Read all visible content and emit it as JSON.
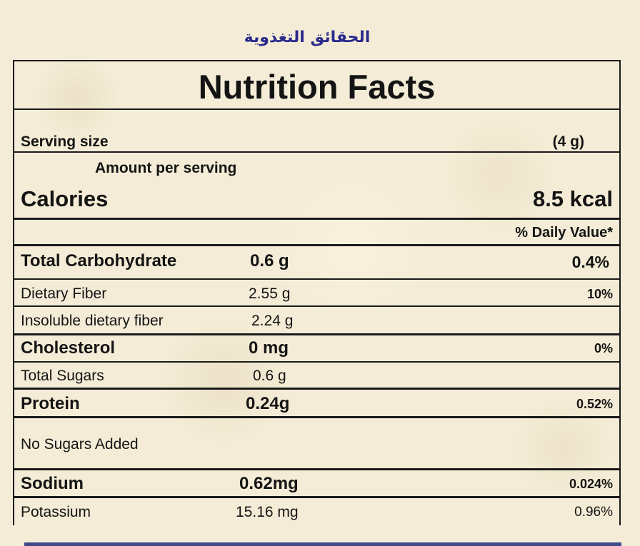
{
  "arabic_title": "الحقائق التغذوية",
  "label": {
    "title": "Nutrition Facts",
    "serving_size_label": "Serving size",
    "serving_size_value": "(4 g)",
    "amount_per_serving": "Amount per serving",
    "calories_label": "Calories",
    "calories_value": "8.5 kcal",
    "daily_value_header": "% Daily Value*",
    "rows": [
      {
        "name": "Total Carbohydrate",
        "amount": "0.6 g",
        "dv": "0.4%"
      },
      {
        "name": "Dietary Fiber",
        "amount": "2.55 g",
        "dv": "10%"
      },
      {
        "name": "Insoluble dietary fiber",
        "amount": "2.24 g",
        "dv": ""
      },
      {
        "name": "Cholesterol",
        "amount": "0 mg",
        "dv": "0%"
      },
      {
        "name": "Total Sugars",
        "amount": "0.6 g",
        "dv": ""
      },
      {
        "name": "Protein",
        "amount": "0.24g",
        "dv": "0.52%"
      },
      {
        "name": "No Sugars Added",
        "amount": "",
        "dv": ""
      },
      {
        "name": "Sodium",
        "amount": "0.62mg",
        "dv": "0.024%"
      },
      {
        "name": "Potassium",
        "amount": "15.16 mg",
        "dv": "0.96%"
      }
    ]
  },
  "colors": {
    "background": "#f4ecd6",
    "arabic_title": "#2a2a8c",
    "lines": "#1a1a1a",
    "bottom_bar": "#3d4a8a"
  }
}
